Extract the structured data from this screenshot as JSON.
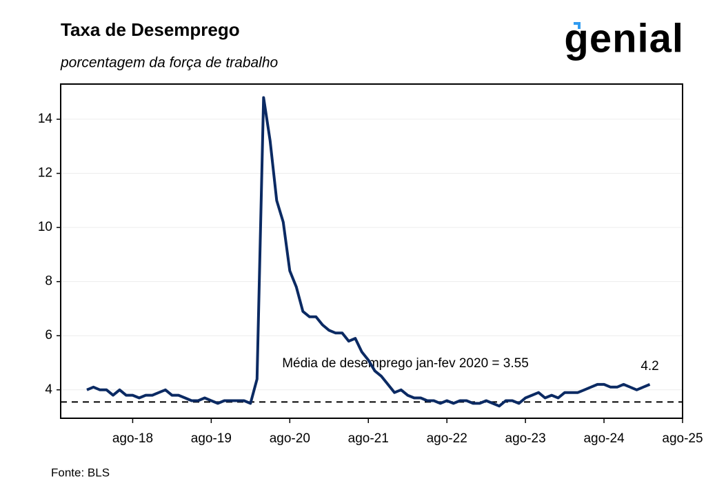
{
  "chart_data": {
    "type": "line",
    "title": "Taxa de Desemprego",
    "subtitle": "porcentagem da força de trabalho",
    "logo": "genial",
    "source": "Fonte: BLS",
    "annotation": "Média de desemprego jan-fev 2020 =  3.55",
    "hline": 3.55,
    "x": [
      "2018-01",
      "2018-02",
      "2018-03",
      "2018-04",
      "2018-05",
      "2018-06",
      "2018-07",
      "2018-08",
      "2018-09",
      "2018-10",
      "2018-11",
      "2018-12",
      "2019-01",
      "2019-02",
      "2019-03",
      "2019-04",
      "2019-05",
      "2019-06",
      "2019-07",
      "2019-08",
      "2019-09",
      "2019-10",
      "2019-11",
      "2019-12",
      "2020-01",
      "2020-02",
      "2020-03",
      "2020-04",
      "2020-05",
      "2020-06",
      "2020-07",
      "2020-08",
      "2020-09",
      "2020-10",
      "2020-11",
      "2020-12",
      "2021-01",
      "2021-02",
      "2021-03",
      "2021-04",
      "2021-05",
      "2021-06",
      "2021-07",
      "2021-08",
      "2021-09",
      "2021-10",
      "2021-11",
      "2021-12",
      "2022-01",
      "2022-02",
      "2022-03",
      "2022-04",
      "2022-05",
      "2022-06",
      "2022-07",
      "2022-08",
      "2022-09",
      "2022-10",
      "2022-11",
      "2022-12",
      "2023-01",
      "2023-02",
      "2023-03",
      "2023-04",
      "2023-05",
      "2023-06",
      "2023-07",
      "2023-08",
      "2023-09",
      "2023-10",
      "2023-11",
      "2023-12",
      "2024-01",
      "2024-02",
      "2024-03",
      "2024-04",
      "2024-05",
      "2024-06",
      "2024-07",
      "2024-08",
      "2024-09",
      "2024-10",
      "2024-11",
      "2024-12",
      "2025-01",
      "2025-02",
      "2025-03"
    ],
    "series": [
      {
        "color": "#0b2a63",
        "values": [
          4.0,
          4.1,
          4.0,
          4.0,
          3.8,
          4.0,
          3.8,
          3.8,
          3.7,
          3.8,
          3.8,
          3.9,
          4.0,
          3.8,
          3.8,
          3.7,
          3.6,
          3.6,
          3.7,
          3.6,
          3.5,
          3.6,
          3.6,
          3.6,
          3.6,
          3.5,
          4.4,
          14.8,
          13.2,
          11.0,
          10.2,
          8.4,
          7.8,
          6.9,
          6.7,
          6.7,
          6.4,
          6.2,
          6.1,
          6.1,
          5.8,
          5.9,
          5.4,
          5.1,
          4.7,
          4.5,
          4.2,
          3.9,
          4.0,
          3.8,
          3.7,
          3.7,
          3.6,
          3.6,
          3.5,
          3.6,
          3.5,
          3.6,
          3.6,
          3.5,
          3.5,
          3.6,
          3.5,
          3.4,
          3.6,
          3.6,
          3.5,
          3.7,
          3.8,
          3.9,
          3.7,
          3.8,
          3.7,
          3.9,
          3.9,
          3.9,
          4.0,
          4.1,
          4.2,
          4.2,
          4.1,
          4.1,
          4.2,
          4.1,
          4.0,
          4.1,
          4.2
        ]
      }
    ],
    "xlim": [
      "2017-09",
      "2025-08"
    ],
    "xticks": [
      {
        "value": "2018-08",
        "label": "ago-18"
      },
      {
        "value": "2019-08",
        "label": "ago-19"
      },
      {
        "value": "2020-08",
        "label": "ago-20"
      },
      {
        "value": "2021-08",
        "label": "ago-21"
      },
      {
        "value": "2022-08",
        "label": "ago-22"
      },
      {
        "value": "2023-08",
        "label": "ago-23"
      },
      {
        "value": "2024-08",
        "label": "ago-24"
      },
      {
        "value": "2025-08",
        "label": "ago-25"
      }
    ],
    "ylim": [
      2.95,
      15.3
    ],
    "yticks": [
      4,
      6,
      8,
      10,
      12,
      14
    ],
    "grid": true
  }
}
